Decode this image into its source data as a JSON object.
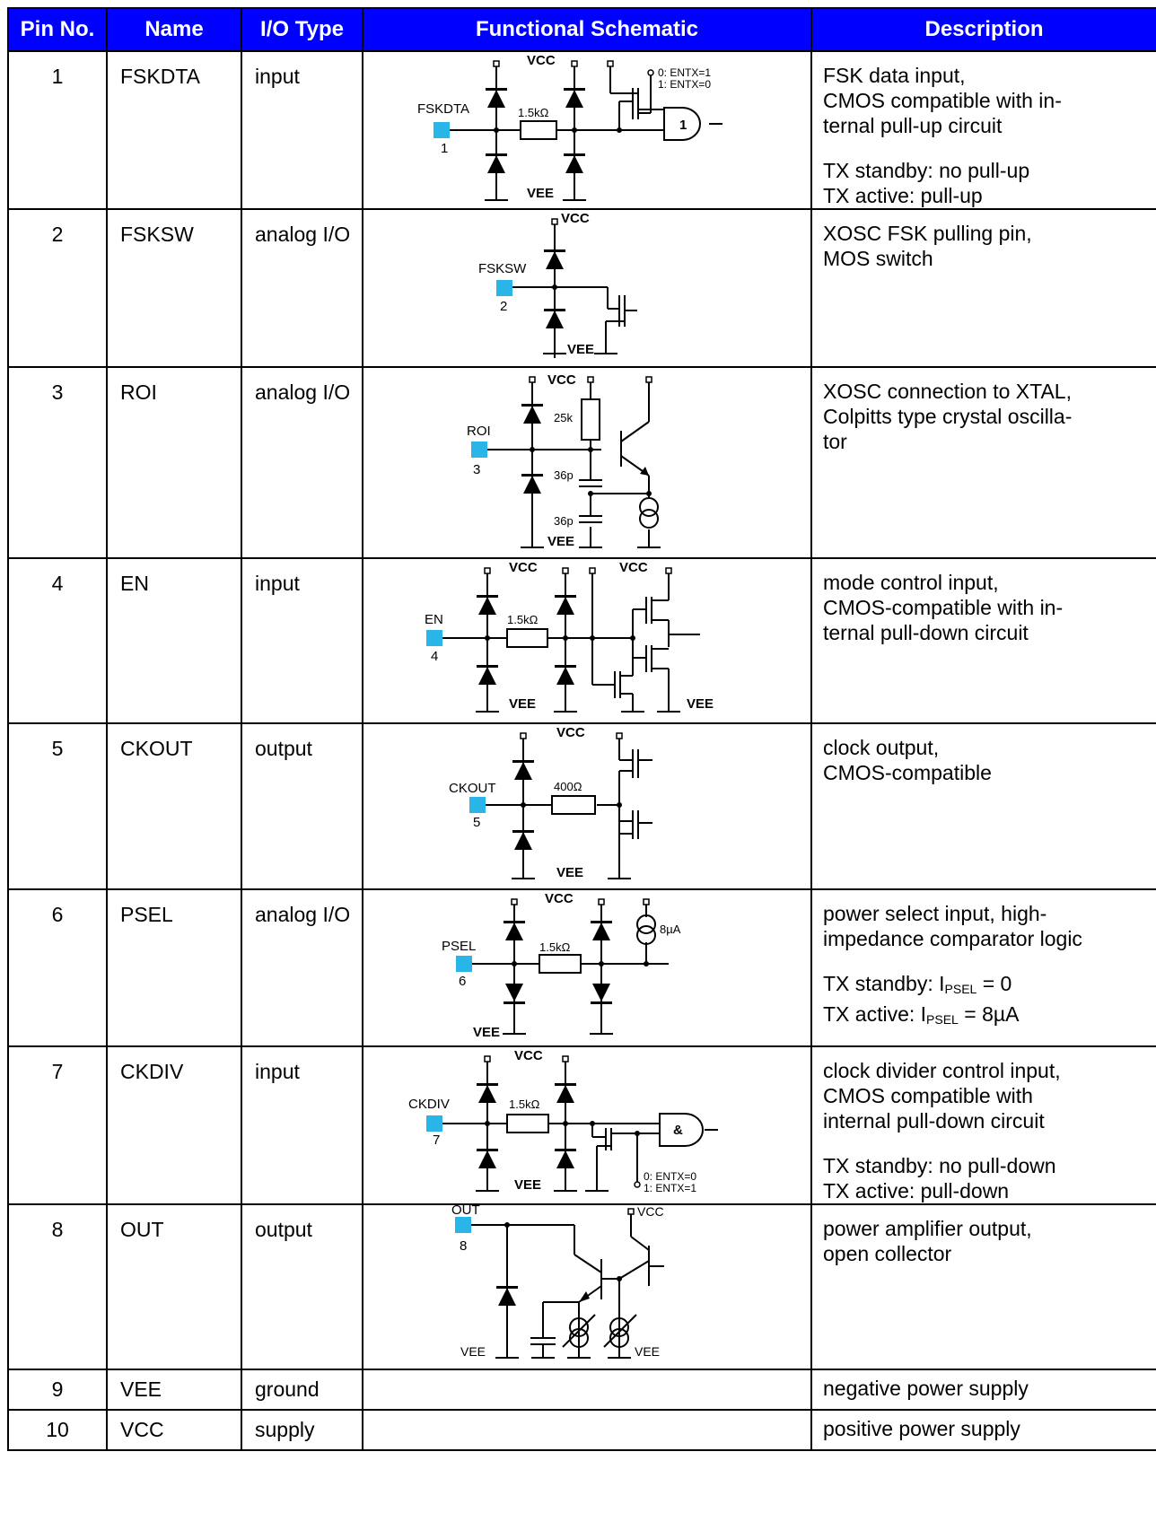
{
  "headers": {
    "pin": "Pin No.",
    "name": "Name",
    "io": "I/O Type",
    "schematic": "Functional Schematic",
    "description": "Description"
  },
  "pins": [
    {
      "pin": "1",
      "name": "FSKDTA",
      "io": "input",
      "desc": [
        "FSK data input,",
        "CMOS compatible with in-",
        "ternal pull-up circuit"
      ],
      "desc2": [
        "TX standby: no pull-up",
        "TX active: pull-up"
      ],
      "sch": {
        "vcc": "VCC",
        "vee": "VEE",
        "pad_label": "FSKDTA",
        "pad_num": "1",
        "res": "1.5kΩ",
        "sw0": "0: ENTX=1",
        "sw1": "1: ENTX=0",
        "gate": "1"
      }
    },
    {
      "pin": "2",
      "name": "FSKSW",
      "io": "analog I/O",
      "desc": [
        "XOSC FSK pulling pin,",
        "MOS switch"
      ],
      "sch": {
        "vcc": "VCC",
        "vee": "VEE",
        "pad_label": "FSKSW",
        "pad_num": "2"
      }
    },
    {
      "pin": "3",
      "name": "ROI",
      "io": "analog I/O",
      "desc": [
        "XOSC connection to XTAL,",
        "Colpitts type crystal oscilla-",
        "tor"
      ],
      "sch": {
        "vcc": "VCC",
        "vee": "VEE",
        "pad_label": "ROI",
        "pad_num": "3",
        "res": "25k",
        "cap1": "36p",
        "cap2": "36p"
      }
    },
    {
      "pin": "4",
      "name": "EN",
      "io": "input",
      "desc": [
        "mode control input,",
        "CMOS-compatible with in-",
        "ternal pull-down circuit"
      ],
      "sch": {
        "vcc": "VCC",
        "vcc2": "VCC",
        "vee": "VEE",
        "vee2": "VEE",
        "pad_label": "EN",
        "pad_num": "4",
        "res": "1.5kΩ"
      }
    },
    {
      "pin": "5",
      "name": "CKOUT",
      "io": "output",
      "desc": [
        "clock output,",
        "CMOS-compatible"
      ],
      "sch": {
        "vcc": "VCC",
        "vee": "VEE",
        "pad_label": "CKOUT",
        "pad_num": "5",
        "res": "400Ω"
      }
    },
    {
      "pin": "6",
      "name": "PSEL",
      "io": "analog I/O",
      "desc": [
        "power select input, high-",
        "impedance comparator logic"
      ],
      "desc2a": {
        "pre": "TX standby: I",
        "sub": "PSEL",
        "post": " = 0"
      },
      "desc2b": {
        "pre": "TX active: I",
        "sub": "PSEL",
        "post": " = 8µA"
      },
      "sch": {
        "vcc": "VCC",
        "vee": "VEE",
        "pad_label": "PSEL",
        "pad_num": "6",
        "res": "1.5kΩ",
        "src": "8µA"
      }
    },
    {
      "pin": "7",
      "name": "CKDIV",
      "io": "input",
      "desc": [
        "clock divider control input,",
        "CMOS compatible with",
        "internal pull-down circuit"
      ],
      "desc2": [
        "TX standby: no pull-down",
        "TX active: pull-down"
      ],
      "sch": {
        "vcc": "VCC",
        "vee": "VEE",
        "pad_label": "CKDIV",
        "pad_num": "7",
        "res": "1.5kΩ",
        "sw0": "0: ENTX=0",
        "sw1": "1: ENTX=1",
        "gate": "&"
      }
    },
    {
      "pin": "8",
      "name": "OUT",
      "io": "output",
      "desc": [
        "power amplifier output,",
        "open collector"
      ],
      "sch": {
        "vcc": "VCC",
        "vee": "VEE",
        "vee2": "VEE",
        "pad_label": "OUT",
        "pad_num": "8"
      }
    },
    {
      "pin": "9",
      "name": "VEE",
      "io": "ground",
      "desc": [
        "negative power supply"
      ]
    },
    {
      "pin": "10",
      "name": "VCC",
      "io": "supply",
      "desc": [
        "positive power supply"
      ]
    }
  ],
  "colors": {
    "header_bg": "#0000ff",
    "header_text": "#ffffff",
    "pad": "#29b5e8"
  }
}
